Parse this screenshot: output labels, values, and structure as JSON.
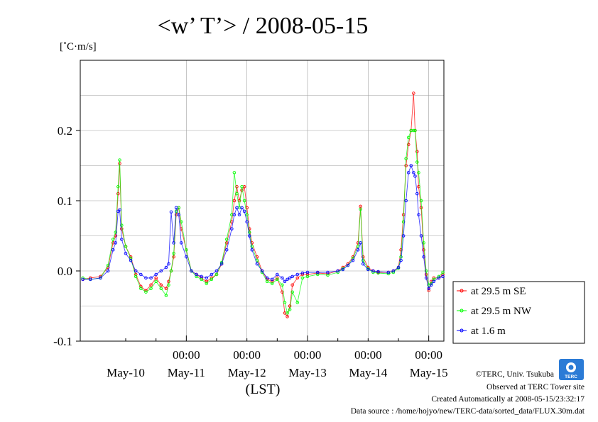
{
  "chart_data": {
    "type": "line",
    "title": "<w’ T’> / 2008-05-15",
    "unit": "[˚C·m/s]",
    "xlabel": "(LST)",
    "ylim": [
      -0.1,
      0.3
    ],
    "yticks": [
      "0.2",
      "0.1",
      "0.0",
      "-0.1"
    ],
    "ytick_values": [
      0.2,
      0.1,
      0.0,
      -0.1
    ],
    "xrange_hours": [
      -21,
      51
    ],
    "xticks_time": [
      "00:00",
      "00:00",
      "00:00",
      "00:00",
      "00:00"
    ],
    "xticks_date": [
      "May-10",
      "May-11",
      "May-12",
      "May-13",
      "May-14",
      "May-15"
    ],
    "grid": true,
    "legend_position": "right",
    "series": [
      {
        "name": "at 29.5 m SE",
        "color": "#ff0000",
        "points": [
          [
            -20.5,
            -0.012
          ],
          [
            -19,
            -0.01
          ],
          [
            -17,
            -0.008
          ],
          [
            -15.5,
            0.005
          ],
          [
            -14.5,
            0.04
          ],
          [
            -14,
            0.05
          ],
          [
            -13.5,
            0.11
          ],
          [
            -13.2,
            0.153
          ],
          [
            -12.8,
            0.06
          ],
          [
            -12,
            0.035
          ],
          [
            -11,
            0.02
          ],
          [
            -10,
            -0.005
          ],
          [
            -9,
            -0.022
          ],
          [
            -8,
            -0.028
          ],
          [
            -7,
            -0.02
          ],
          [
            -6,
            -0.01
          ],
          [
            -5,
            -0.02
          ],
          [
            -4,
            -0.025
          ],
          [
            -3.5,
            -0.015
          ],
          [
            -3,
            0.0
          ],
          [
            -2.5,
            0.02
          ],
          [
            -2,
            0.08
          ],
          [
            -1.5,
            0.09
          ],
          [
            -1,
            0.06
          ],
          [
            0,
            0.03
          ],
          [
            1,
            0.0
          ],
          [
            2,
            -0.005
          ],
          [
            3,
            -0.01
          ],
          [
            4,
            -0.015
          ],
          [
            5,
            -0.01
          ],
          [
            6,
            -0.005
          ],
          [
            7,
            0.01
          ],
          [
            8,
            0.04
          ],
          [
            9,
            0.07
          ],
          [
            9.5,
            0.1
          ],
          [
            10,
            0.12
          ],
          [
            10.5,
            0.1
          ],
          [
            11,
            0.115
          ],
          [
            11.5,
            0.12
          ],
          [
            12,
            0.09
          ],
          [
            12.5,
            0.06
          ],
          [
            13,
            0.04
          ],
          [
            14,
            0.02
          ],
          [
            15,
            0.0
          ],
          [
            16,
            -0.012
          ],
          [
            17,
            -0.015
          ],
          [
            18,
            -0.01
          ],
          [
            19,
            -0.03
          ],
          [
            19.5,
            -0.06
          ],
          [
            20,
            -0.065
          ],
          [
            20.5,
            -0.05
          ],
          [
            21,
            -0.02
          ],
          [
            22,
            -0.01
          ],
          [
            23,
            -0.005
          ],
          [
            24,
            -0.005
          ],
          [
            26,
            -0.003
          ],
          [
            28,
            -0.004
          ],
          [
            30,
            0.0
          ],
          [
            31,
            0.005
          ],
          [
            32,
            0.01
          ],
          [
            33,
            0.02
          ],
          [
            34,
            0.04
          ],
          [
            34.5,
            0.092
          ],
          [
            35,
            0.02
          ],
          [
            36,
            0.005
          ],
          [
            37,
            0.0
          ],
          [
            38,
            -0.002
          ],
          [
            40,
            -0.002
          ],
          [
            41,
            0.0
          ],
          [
            42,
            0.005
          ],
          [
            42.5,
            0.03
          ],
          [
            43,
            0.08
          ],
          [
            43.5,
            0.15
          ],
          [
            44,
            0.18
          ],
          [
            44.5,
            0.2
          ],
          [
            45,
            0.253
          ],
          [
            45.3,
            0.2
          ],
          [
            45.7,
            0.17
          ],
          [
            46,
            0.12
          ],
          [
            46.5,
            0.09
          ],
          [
            47,
            0.03
          ],
          [
            47.5,
            -0.005
          ],
          [
            48,
            -0.028
          ],
          [
            48.5,
            -0.015
          ],
          [
            49,
            -0.01
          ],
          [
            50,
            -0.01
          ],
          [
            50.8,
            -0.005
          ]
        ]
      },
      {
        "name": "at 29.5 m NW",
        "color": "#00ff00",
        "points": [
          [
            -20.5,
            -0.01
          ],
          [
            -19,
            -0.012
          ],
          [
            -17,
            -0.01
          ],
          [
            -15.5,
            0.008
          ],
          [
            -14.5,
            0.045
          ],
          [
            -14,
            0.055
          ],
          [
            -13.5,
            0.12
          ],
          [
            -13.2,
            0.158
          ],
          [
            -12.8,
            0.065
          ],
          [
            -12,
            0.035
          ],
          [
            -11,
            0.018
          ],
          [
            -10,
            -0.008
          ],
          [
            -9,
            -0.025
          ],
          [
            -8,
            -0.03
          ],
          [
            -7,
            -0.025
          ],
          [
            -6,
            -0.015
          ],
          [
            -5,
            -0.025
          ],
          [
            -4,
            -0.035
          ],
          [
            -3.5,
            -0.02
          ],
          [
            -3,
            0.0
          ],
          [
            -2.5,
            0.025
          ],
          [
            -2,
            0.085
          ],
          [
            -1.5,
            0.09
          ],
          [
            -1,
            0.07
          ],
          [
            0,
            0.03
          ],
          [
            1,
            0.0
          ],
          [
            2,
            -0.008
          ],
          [
            3,
            -0.012
          ],
          [
            4,
            -0.018
          ],
          [
            5,
            -0.012
          ],
          [
            6,
            -0.005
          ],
          [
            7,
            0.012
          ],
          [
            8,
            0.045
          ],
          [
            9,
            0.08
          ],
          [
            9.5,
            0.14
          ],
          [
            10,
            0.11
          ],
          [
            10.5,
            0.09
          ],
          [
            11,
            0.12
          ],
          [
            11.5,
            0.1
          ],
          [
            12,
            0.08
          ],
          [
            12.5,
            0.055
          ],
          [
            13,
            0.035
          ],
          [
            14,
            0.015
          ],
          [
            15,
            -0.002
          ],
          [
            16,
            -0.015
          ],
          [
            17,
            -0.018
          ],
          [
            18,
            -0.012
          ],
          [
            19,
            -0.02
          ],
          [
            19.5,
            -0.045
          ],
          [
            20,
            -0.06
          ],
          [
            20.5,
            -0.055
          ],
          [
            21,
            -0.03
          ],
          [
            22,
            -0.045
          ],
          [
            23,
            -0.01
          ],
          [
            24,
            -0.008
          ],
          [
            26,
            -0.005
          ],
          [
            28,
            -0.006
          ],
          [
            30,
            -0.002
          ],
          [
            31,
            0.003
          ],
          [
            32,
            0.008
          ],
          [
            33,
            0.018
          ],
          [
            34,
            0.035
          ],
          [
            34.5,
            0.088
          ],
          [
            35,
            0.015
          ],
          [
            36,
            0.003
          ],
          [
            37,
            -0.002
          ],
          [
            38,
            -0.003
          ],
          [
            40,
            -0.004
          ],
          [
            41,
            -0.002
          ],
          [
            42,
            0.004
          ],
          [
            42.5,
            0.02
          ],
          [
            43,
            0.07
          ],
          [
            43.5,
            0.16
          ],
          [
            44,
            0.19
          ],
          [
            44.5,
            0.2
          ],
          [
            45,
            0.2
          ],
          [
            45.3,
            0.2
          ],
          [
            45.7,
            0.155
          ],
          [
            46,
            0.14
          ],
          [
            46.5,
            0.1
          ],
          [
            47,
            0.04
          ],
          [
            47.5,
            0.0
          ],
          [
            48,
            -0.02
          ],
          [
            48.5,
            -0.018
          ],
          [
            49,
            -0.012
          ],
          [
            50,
            -0.008
          ],
          [
            50.8,
            -0.002
          ]
        ]
      },
      {
        "name": "at 1.6 m",
        "color": "#0000ff",
        "points": [
          [
            -20.5,
            -0.012
          ],
          [
            -19,
            -0.012
          ],
          [
            -17,
            -0.01
          ],
          [
            -15.5,
            0.0
          ],
          [
            -14.5,
            0.03
          ],
          [
            -14,
            0.04
          ],
          [
            -13.5,
            0.085
          ],
          [
            -13.2,
            0.087
          ],
          [
            -12.8,
            0.045
          ],
          [
            -12,
            0.025
          ],
          [
            -11,
            0.015
          ],
          [
            -10,
            0.0
          ],
          [
            -9,
            -0.005
          ],
          [
            -8,
            -0.01
          ],
          [
            -7,
            -0.01
          ],
          [
            -6,
            -0.005
          ],
          [
            -5,
            0.0
          ],
          [
            -4,
            0.005
          ],
          [
            -3.5,
            0.01
          ],
          [
            -3,
            0.084
          ],
          [
            -2.5,
            0.04
          ],
          [
            -2,
            0.09
          ],
          [
            -1.5,
            0.08
          ],
          [
            -1,
            0.04
          ],
          [
            0,
            0.02
          ],
          [
            1,
            0.0
          ],
          [
            2,
            -0.005
          ],
          [
            3,
            -0.008
          ],
          [
            4,
            -0.01
          ],
          [
            5,
            -0.005
          ],
          [
            6,
            0.0
          ],
          [
            7,
            0.01
          ],
          [
            8,
            0.03
          ],
          [
            9,
            0.06
          ],
          [
            9.5,
            0.08
          ],
          [
            10,
            0.09
          ],
          [
            10.5,
            0.08
          ],
          [
            11,
            0.09
          ],
          [
            11.5,
            0.085
          ],
          [
            12,
            0.07
          ],
          [
            12.5,
            0.05
          ],
          [
            13,
            0.03
          ],
          [
            14,
            0.01
          ],
          [
            15,
            0.0
          ],
          [
            16,
            -0.01
          ],
          [
            17,
            -0.012
          ],
          [
            18,
            -0.005
          ],
          [
            19,
            -0.01
          ],
          [
            19.5,
            -0.015
          ],
          [
            20,
            -0.012
          ],
          [
            20.5,
            -0.01
          ],
          [
            21,
            -0.008
          ],
          [
            22,
            -0.005
          ],
          [
            23,
            -0.003
          ],
          [
            24,
            -0.002
          ],
          [
            26,
            -0.002
          ],
          [
            28,
            -0.002
          ],
          [
            30,
            0.0
          ],
          [
            31,
            0.002
          ],
          [
            32,
            0.008
          ],
          [
            33,
            0.015
          ],
          [
            34,
            0.03
          ],
          [
            34.5,
            0.04
          ],
          [
            35,
            0.01
          ],
          [
            36,
            0.002
          ],
          [
            37,
            0.0
          ],
          [
            38,
            -0.001
          ],
          [
            40,
            -0.002
          ],
          [
            41,
            0.0
          ],
          [
            42,
            0.005
          ],
          [
            42.5,
            0.015
          ],
          [
            43,
            0.05
          ],
          [
            43.5,
            0.1
          ],
          [
            44,
            0.14
          ],
          [
            44.5,
            0.15
          ],
          [
            45,
            0.14
          ],
          [
            45.3,
            0.135
          ],
          [
            45.7,
            0.11
          ],
          [
            46,
            0.08
          ],
          [
            46.5,
            0.05
          ],
          [
            47,
            0.02
          ],
          [
            47.5,
            -0.01
          ],
          [
            48,
            -0.025
          ],
          [
            48.5,
            -0.02
          ],
          [
            49,
            -0.015
          ],
          [
            50,
            -0.01
          ],
          [
            50.8,
            -0.008
          ]
        ]
      }
    ]
  },
  "credits": {
    "copyright": "©TERC, Univ. Tsukuba",
    "observed": "Observed at TERC Tower site",
    "created": "Created Automatically at 2008-05-15/23:32:17",
    "source": "Data source : /home/hojyo/new/TERC-data/sorted_data/FLUX.30m.dat",
    "logo_text": "TERC"
  }
}
